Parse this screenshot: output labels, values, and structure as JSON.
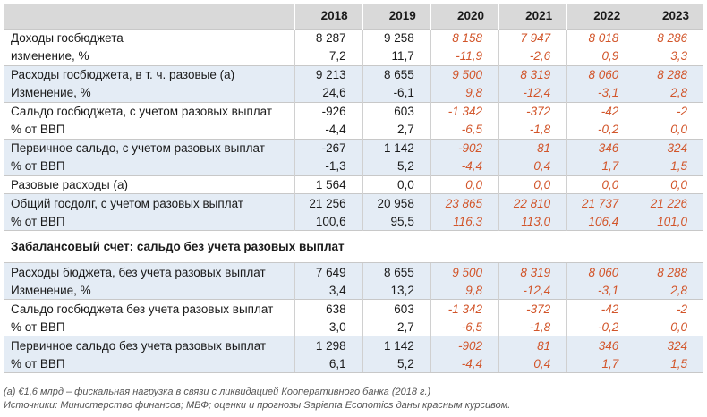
{
  "years": [
    "2018",
    "2019",
    "2020",
    "2021",
    "2022",
    "2023"
  ],
  "rows": [
    {
      "label": "Доходы госбюджета",
      "values": [
        "8 287",
        "9 258",
        "8 158",
        "7 947",
        "8 018",
        "8 286"
      ]
    },
    {
      "label": "изменение, %",
      "values": [
        "7,2",
        "11,7",
        "-11,9",
        "-2,6",
        "0,9",
        "3,3"
      ]
    },
    {
      "label": "Расходы госбюджета, в т. ч. разовые (а)",
      "values": [
        "9 213",
        "8 655",
        "9 500",
        "8 319",
        "8 060",
        "8 288"
      ]
    },
    {
      "label": "Изменение, %",
      "values": [
        "24,6",
        "-6,1",
        "9,8",
        "-12,4",
        "-3,1",
        "2,8"
      ]
    },
    {
      "label": "Сальдо госбюджета, с учетом разовых выплат",
      "values": [
        "-926",
        "603",
        "-1 342",
        "-372",
        "-42",
        "-2"
      ]
    },
    {
      "label": "% от ВВП",
      "values": [
        "-4,4",
        "2,7",
        "-6,5",
        "-1,8",
        "-0,2",
        "0,0"
      ]
    },
    {
      "label": "Первичное сальдо, с учетом разовых выплат",
      "values": [
        "-267",
        "1 142",
        "-902",
        "81",
        "346",
        "324"
      ]
    },
    {
      "label": "% от ВВП",
      "values": [
        "-1,3",
        "5,2",
        "-4,4",
        "0,4",
        "1,7",
        "1,5"
      ]
    },
    {
      "label": "Разовые расходы (а)",
      "values": [
        "1 564",
        "0,0",
        "0,0",
        "0,0",
        "0,0",
        "0,0"
      ]
    },
    {
      "label": "Общий госдолг, с учетом разовых выплат",
      "values": [
        "21 256",
        "20 958",
        "23 865",
        "22 810",
        "21 737",
        "21 226"
      ]
    },
    {
      "label": "% от ВВП",
      "values": [
        "100,6",
        "95,5",
        "116,3",
        "113,0",
        "106,4",
        "101,0"
      ]
    }
  ],
  "section_title": "Забалансовый счет: сальдо без учета разовых выплат",
  "rows2": [
    {
      "label": "Расходы бюджета, без учета разовых выплат",
      "values": [
        "7 649",
        "8 655",
        "9 500",
        "8 319",
        "8 060",
        "8 288"
      ]
    },
    {
      "label": "Изменение, %",
      "values": [
        "3,4",
        "13,2",
        "9,8",
        "-12,4",
        "-3,1",
        "2,8"
      ]
    },
    {
      "label": "Сальдо госбюджета без учета разовых выплат",
      "values": [
        "638",
        "603",
        "-1 342",
        "-372",
        "-42",
        "-2"
      ]
    },
    {
      "label": "% от ВВП",
      "values": [
        "3,0",
        "2,7",
        "-6,5",
        "-1,8",
        "-0,2",
        "0,0"
      ]
    },
    {
      "label": "Первичное сальдо без учета разовых выплат",
      "values": [
        "1 298",
        "1 142",
        "-902",
        "81",
        "346",
        "324"
      ]
    },
    {
      "label": "% от ВВП",
      "values": [
        "6,1",
        "5,2",
        "-4,4",
        "0,4",
        "1,7",
        "1,5"
      ]
    }
  ],
  "notes": {
    "footnote": "(а) €1,6 млрд – фискальная нагрузка в связи с ликвидацией Кооперативного банка (2018 г.)",
    "sources": "Источники: Министерство финансов; МВФ; оценки и прогнозы Sapienta Economics даны красным курсивом."
  },
  "colors": {
    "forecast": "#d2552a",
    "header_bg": "#d9d9d9",
    "band_bg": "#e4ecf5"
  }
}
